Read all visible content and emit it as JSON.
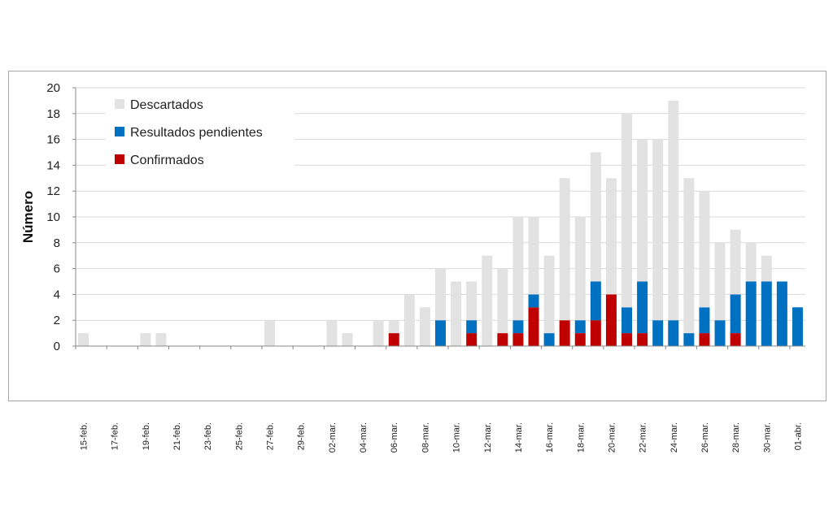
{
  "chart_data": {
    "type": "bar",
    "stacked": true,
    "ylabel": "Número",
    "xlabel": "",
    "ylim": [
      0,
      20
    ],
    "yticks": [
      0,
      2,
      4,
      6,
      8,
      10,
      12,
      14,
      16,
      18,
      20
    ],
    "grid": true,
    "legend_position": "top-left",
    "categories": [
      "15-feb.",
      "16-feb.",
      "17-feb.",
      "18-feb.",
      "19-feb.",
      "20-feb.",
      "21-feb.",
      "22-feb.",
      "23-feb.",
      "24-feb.",
      "25-feb.",
      "26-feb.",
      "27-feb.",
      "28-feb.",
      "29-feb.",
      "01-mar.",
      "02-mar.",
      "03-mar.",
      "04-mar.",
      "05-mar.",
      "06-mar.",
      "07-mar.",
      "08-mar.",
      "09-mar.",
      "10-mar.",
      "11-mar.",
      "12-mar.",
      "13-mar.",
      "14-mar.",
      "15-mar.",
      "16-mar.",
      "17-mar.",
      "18-mar.",
      "19-mar.",
      "20-mar.",
      "21-mar.",
      "22-mar.",
      "23-mar.",
      "24-mar.",
      "25-mar.",
      "26-mar.",
      "27-mar.",
      "28-mar.",
      "29-mar.",
      "30-mar.",
      "31-mar.",
      "01-abr."
    ],
    "xtick_labels": [
      "15-feb.",
      "17-feb.",
      "19-feb.",
      "21-feb.",
      "23-feb.",
      "25-feb.",
      "27-feb.",
      "29-feb.",
      "02-mar.",
      "04-mar.",
      "06-mar.",
      "08-mar.",
      "10-mar.",
      "12-mar.",
      "14-mar.",
      "16-mar.",
      "18-mar.",
      "20-mar.",
      "22-mar.",
      "24-mar.",
      "26-mar.",
      "28-mar.",
      "30-mar.",
      "01-abr."
    ],
    "series": [
      {
        "name": "Confirmados",
        "color": "#c00000",
        "values": [
          0,
          0,
          0,
          0,
          0,
          0,
          0,
          0,
          0,
          0,
          0,
          0,
          0,
          0,
          0,
          0,
          0,
          0,
          0,
          0,
          1,
          0,
          0,
          0,
          0,
          1,
          0,
          1,
          1,
          3,
          0,
          2,
          1,
          2,
          4,
          1,
          1,
          0,
          0,
          0,
          1,
          0,
          1,
          0,
          0,
          0,
          0
        ]
      },
      {
        "name": "Resultados pendientes",
        "color": "#0070c0",
        "values": [
          0,
          0,
          0,
          0,
          0,
          0,
          0,
          0,
          0,
          0,
          0,
          0,
          0,
          0,
          0,
          0,
          0,
          0,
          0,
          0,
          0,
          0,
          0,
          2,
          0,
          1,
          0,
          0,
          1,
          1,
          1,
          0,
          1,
          3,
          0,
          2,
          4,
          2,
          2,
          1,
          2,
          2,
          3,
          5,
          5,
          5,
          3
        ]
      },
      {
        "name": "Descartados",
        "color": "#e2e2e2",
        "values": [
          1,
          0,
          0,
          0,
          1,
          1,
          0,
          0,
          0,
          0,
          0,
          0,
          2,
          0,
          0,
          0,
          2,
          1,
          0,
          2,
          1,
          4,
          3,
          4,
          5,
          3,
          7,
          5,
          8,
          6,
          6,
          11,
          8,
          10,
          9,
          15,
          11,
          14,
          17,
          12,
          9,
          6,
          5,
          3,
          2,
          0,
          0
        ]
      }
    ],
    "legend_order": [
      "Descartados",
      "Resultados pendientes",
      "Confirmados"
    ]
  }
}
